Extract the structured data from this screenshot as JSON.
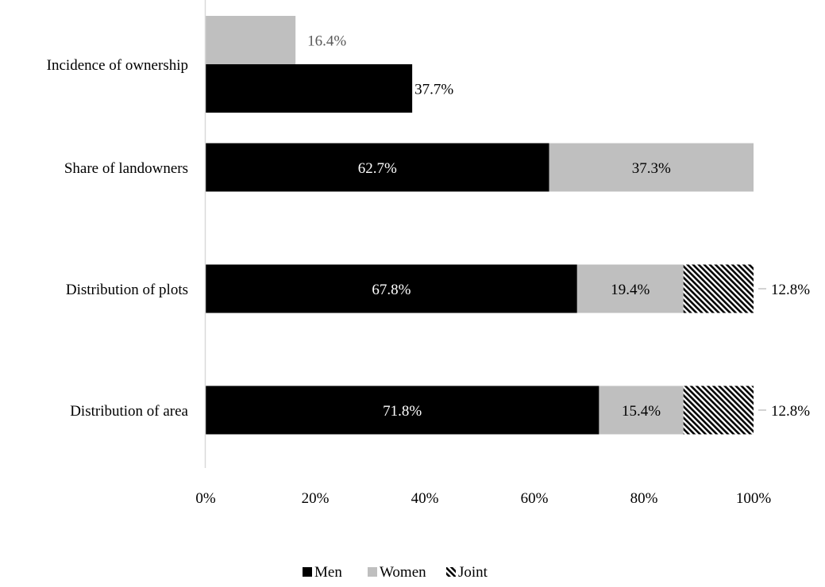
{
  "chart_data": {
    "type": "bar",
    "orientation": "horizontal",
    "layout": "grouped-and-stacked",
    "title": "",
    "xlabel": "",
    "ylabel": "",
    "xlim": [
      0,
      100
    ],
    "x_ticks": [
      "0%",
      "20%",
      "40%",
      "60%",
      "80%",
      "100%"
    ],
    "grid": false,
    "legend_position": "bottom",
    "categories": [
      "Incidence of ownership",
      "Share of landowners",
      "Distribution of plots",
      "Distribution of area"
    ],
    "series": [
      {
        "name": "Men",
        "color": "#000000",
        "pattern": "solid",
        "values": [
          37.7,
          62.7,
          67.8,
          71.8
        ],
        "labels": [
          "37.7%",
          "62.7%",
          "67.8%",
          "71.8%"
        ]
      },
      {
        "name": "Women",
        "color": "#bfbfbf",
        "pattern": "solid",
        "values": [
          16.4,
          37.3,
          19.4,
          15.4
        ],
        "labels": [
          "16.4%",
          "37.3%",
          "19.4%",
          "15.4%"
        ]
      },
      {
        "name": "Joint",
        "color": "#000000",
        "pattern": "diagonal-hatch",
        "values": [
          null,
          null,
          12.8,
          12.8
        ],
        "labels": [
          null,
          null,
          "12.8%",
          "12.8%"
        ]
      }
    ]
  }
}
